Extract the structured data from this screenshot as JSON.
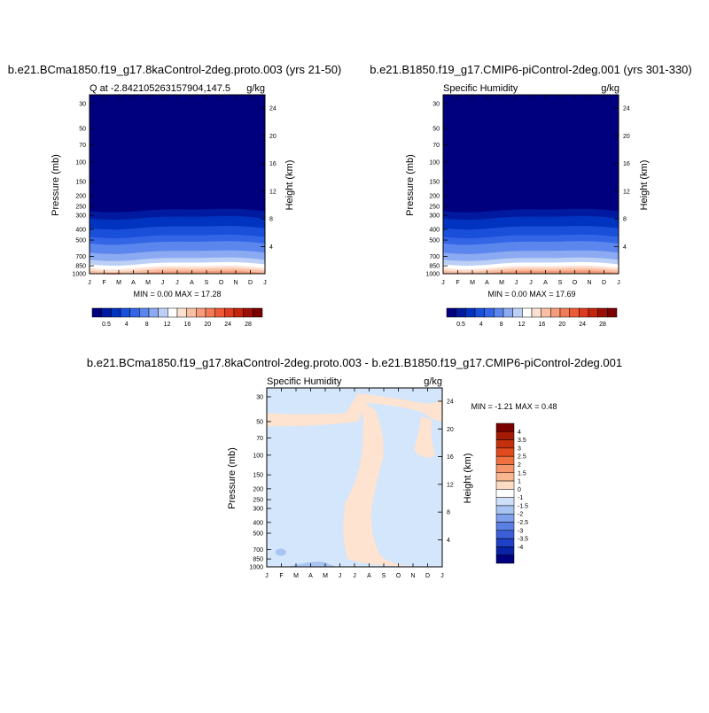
{
  "month_labels": [
    "J",
    "F",
    "M",
    "A",
    "M",
    "J",
    "J",
    "A",
    "S",
    "O",
    "N",
    "D",
    "J"
  ],
  "pressure_levels": [
    30,
    50,
    70,
    100,
    150,
    200,
    250,
    300,
    400,
    500,
    700,
    850,
    1000
  ],
  "height_km": [
    24,
    20,
    16,
    12,
    8,
    4
  ],
  "colors": {
    "humidity_scale": [
      "#00007f",
      "#001a9f",
      "#0033bf",
      "#1a4fd9",
      "#3366e6",
      "#5a86ee",
      "#8caaf2",
      "#bcd0f7",
      "#ffffff",
      "#fde0cf",
      "#f9bfa3",
      "#f69c7a",
      "#f37a57",
      "#ed5a36",
      "#dd3a1e",
      "#c4230e",
      "#9a1005",
      "#7a0000"
    ],
    "diff_scale": [
      "#7a0000",
      "#a51a05",
      "#c4300e",
      "#e04a1c",
      "#f07040",
      "#f5966a",
      "#f8b691",
      "#fddcc4",
      "#ffffff",
      "#cfe0fa",
      "#a8c4f3",
      "#7fa1ec",
      "#5a80e4",
      "#3a5fd8",
      "#1f40c4",
      "#0a23a6",
      "#00007f"
    ]
  },
  "chart_data": [
    {
      "type": "heatmap",
      "title": "b.e21.BCma1850.f19_g17.8kaControl-2deg.proto.003 (yrs 21-50)",
      "left_header": "Q at -2.842105263157904,147.5",
      "right_header": "g/kg",
      "ylabel": "Pressure (mb)",
      "ylabel_right": "Height (km)",
      "min_max": "MIN =   0.00 MAX =  17.28",
      "min": 0.0,
      "max": 17.28,
      "colorbar_labels": [
        "0.5",
        "4",
        "8",
        "12",
        "16",
        "20",
        "24",
        "28"
      ],
      "profile": {
        "pressure_mb": [
          1000,
          850,
          700,
          500,
          400,
          300,
          250
        ],
        "q_gkg": [
          17.2,
          11,
          7,
          3.5,
          2.2,
          0.8,
          0.3
        ]
      }
    },
    {
      "type": "heatmap",
      "title": "b.e21.B1850.f19_g17.CMIP6-piControl-2deg.001 (yrs 301-330)",
      "left_header": "Specific Humidity",
      "right_header": "g/kg",
      "ylabel": "Pressure (mb)",
      "ylabel_right": "Height (km)",
      "min_max": "MIN =   0.00 MAX =  17.69",
      "min": 0.0,
      "max": 17.69,
      "colorbar_labels": [
        "0.5",
        "4",
        "8",
        "12",
        "16",
        "20",
        "24",
        "28"
      ],
      "profile": {
        "pressure_mb": [
          1000,
          850,
          700,
          500,
          400,
          300,
          250
        ],
        "q_gkg": [
          17.6,
          11,
          7,
          3.5,
          2.2,
          0.8,
          0.3
        ]
      }
    },
    {
      "type": "heatmap",
      "title": "b.e21.BCma1850.f19_g17.8kaControl-2deg.proto.003 - b.e21.B1850.f19_g17.CMIP6-piControl-2deg.001",
      "left_header": "Specific Humidity",
      "right_header": "g/kg",
      "ylabel": "Pressure (mb)",
      "ylabel_right": "Height (km)",
      "min_max": "MIN =  -1.21 MAX =   0.48",
      "min": -1.21,
      "max": 0.48,
      "colorbar_labels": [
        "4",
        "3.5",
        "3",
        "2.5",
        "2",
        "1.5",
        "1",
        "0",
        "-1",
        "-1.5",
        "-2",
        "-2.5",
        "-3",
        "-3.5",
        "-4"
      ],
      "regions": [
        "positive (0 to 1) band near 50 mb, positive (0 to 1) tongue Jul-Sep 100-1000 mb, negative (-1 to 0) elsewhere, negative (-1.5 to -1) spots near 700-1000 mb Jan-Apr"
      ]
    }
  ]
}
